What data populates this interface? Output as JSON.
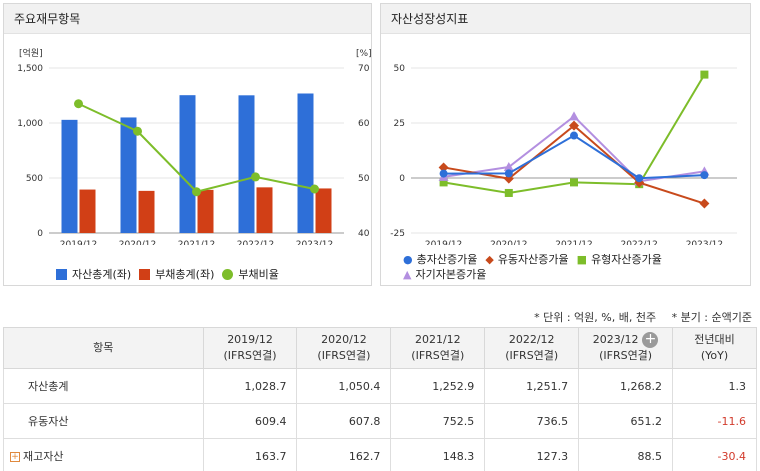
{
  "left_panel": {
    "title": "주요재무항목"
  },
  "right_panel": {
    "title": "자산성장성지표"
  },
  "notes": {
    "unit": "* 단위 : 억원, %, 배, 천주",
    "quarter": "* 분기 : 순액기준"
  },
  "table": {
    "header_item": "항목",
    "periods": [
      {
        "year": "2019/12",
        "basis": "(IFRS연결)"
      },
      {
        "year": "2020/12",
        "basis": "(IFRS연결)"
      },
      {
        "year": "2021/12",
        "basis": "(IFRS연결)"
      },
      {
        "year": "2022/12",
        "basis": "(IFRS연결)"
      },
      {
        "year": "2023/12",
        "basis": "(IFRS연결)"
      }
    ],
    "yoy_label": "전년대비",
    "yoy_sub": "(YoY)",
    "expand_symbol": "+",
    "rows": [
      {
        "label": "자산총계",
        "values": [
          "1,028.7",
          "1,050.4",
          "1,252.9",
          "1,251.7",
          "1,268.2"
        ],
        "yoy": "1.3",
        "yoy_negative": false,
        "expandable": false
      },
      {
        "label": "유동자산",
        "values": [
          "609.4",
          "607.8",
          "752.5",
          "736.5",
          "651.2"
        ],
        "yoy": "-11.6",
        "yoy_negative": true,
        "expandable": false
      },
      {
        "label": "재고자산",
        "values": [
          "163.7",
          "162.7",
          "148.3",
          "127.3",
          "88.5"
        ],
        "yoy": "-30.4",
        "yoy_negative": true,
        "expandable": true
      }
    ]
  },
  "chart_data": [
    {
      "type": "bar",
      "title": "주요재무항목",
      "categories": [
        "2019/12",
        "2020/12",
        "2021/12",
        "2022/12",
        "2023/12"
      ],
      "y_left_unit": "[억원]",
      "y_right_unit": "[%]",
      "ylim_left": [
        0,
        1500
      ],
      "yticks_left": [
        "0",
        "500",
        "1,000",
        "1,500"
      ],
      "ylim_right": [
        40,
        70
      ],
      "yticks_right": [
        "40",
        "50",
        "60",
        "70"
      ],
      "grid": true,
      "legend_position": "bottom",
      "series": [
        {
          "name": "자산총계(좌)",
          "kind": "bar",
          "axis": "left",
          "color": "#2e6fd8",
          "values": [
            1028.7,
            1050.4,
            1252.9,
            1251.7,
            1268.2
          ]
        },
        {
          "name": "부채총계(좌)",
          "kind": "bar",
          "axis": "left",
          "color": "#d13f16",
          "values": [
            395,
            383,
            392,
            415,
            405
          ]
        },
        {
          "name": "부채비율",
          "kind": "line",
          "axis": "right",
          "color": "#7dbd2a",
          "values": [
            63.5,
            58.5,
            47.5,
            50.2,
            48.0
          ]
        }
      ]
    },
    {
      "type": "line",
      "title": "자산성장성지표",
      "categories": [
        "2019/12",
        "2020/12",
        "2021/12",
        "2022/12",
        "2023/12"
      ],
      "ylim": [
        -25,
        50
      ],
      "yticks": [
        "-25",
        "0",
        "25",
        "50"
      ],
      "grid": true,
      "legend_position": "bottom",
      "series": [
        {
          "name": "총자산증가율",
          "marker": "circle",
          "color": "#2e6fd8",
          "values": [
            2.0,
            2.1,
            19.3,
            -0.1,
            1.3
          ]
        },
        {
          "name": "유동자산증가율",
          "marker": "diamond",
          "color": "#c84a1c",
          "values": [
            4.8,
            -0.3,
            23.8,
            -2.1,
            -11.6
          ]
        },
        {
          "name": "유형자산증가율",
          "marker": "square",
          "color": "#7dbd2a",
          "values": [
            -2.0,
            -6.8,
            -2.0,
            -2.8,
            47.0
          ]
        },
        {
          "name": "자기자본증가율",
          "marker": "triangle",
          "color": "#b38fe0",
          "values": [
            0.5,
            5.0,
            28.0,
            -1.5,
            3.0
          ]
        }
      ]
    }
  ]
}
